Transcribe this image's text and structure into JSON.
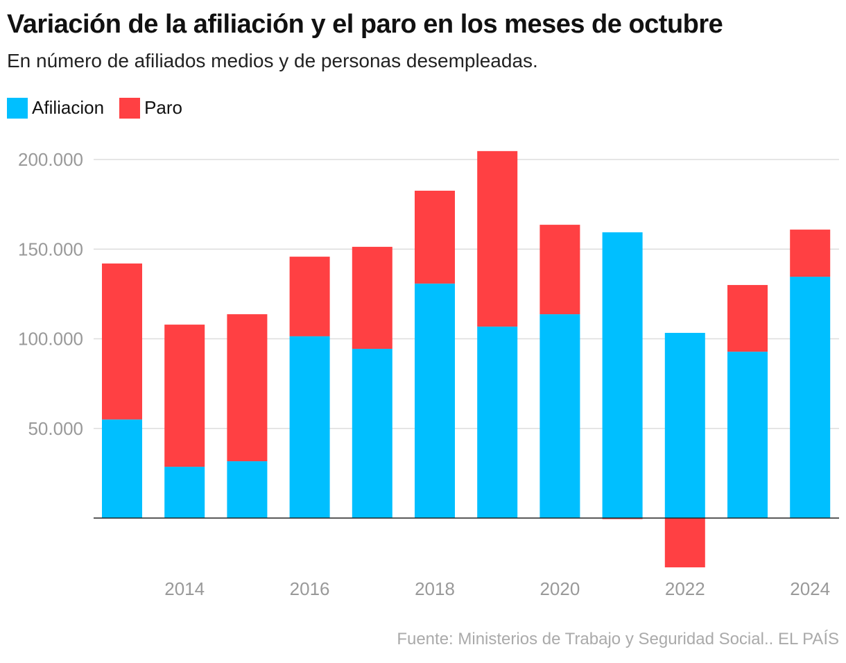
{
  "chart_data": {
    "type": "bar",
    "stacked": true,
    "title": "Variación de la afiliación y el paro en los meses de octubre",
    "subtitle": "En número de afiliados medios y de personas desempleadas.",
    "categories": [
      "2013",
      "2014",
      "2015",
      "2016",
      "2017",
      "2018",
      "2019",
      "2020",
      "2021",
      "2022",
      "2023",
      "2024"
    ],
    "x_tick_labels": [
      "2014",
      "2016",
      "2018",
      "2020",
      "2022",
      "2024"
    ],
    "series": [
      {
        "name": "Afiliacion",
        "color": "#00bfff",
        "values": [
          55000,
          28600,
          31700,
          101400,
          94400,
          130800,
          106800,
          113700,
          159400,
          103300,
          92800,
          134600
        ]
      },
      {
        "name": "Paro",
        "color": "#ff4043",
        "values": [
          87000,
          79300,
          82000,
          44400,
          56900,
          51800,
          97900,
          49900,
          -500,
          -27500,
          37200,
          26300
        ]
      }
    ],
    "y_ticks": [
      50000,
      100000,
      150000,
      200000
    ],
    "y_tick_labels": [
      "50.000",
      "100.000",
      "150.000",
      "200.000"
    ],
    "ylim": [
      -35000,
      210000
    ],
    "grid": true,
    "legend_position": "top-left",
    "source": "Fuente: Ministerios de Trabajo y Seguridad Social.. EL PAÍS"
  }
}
